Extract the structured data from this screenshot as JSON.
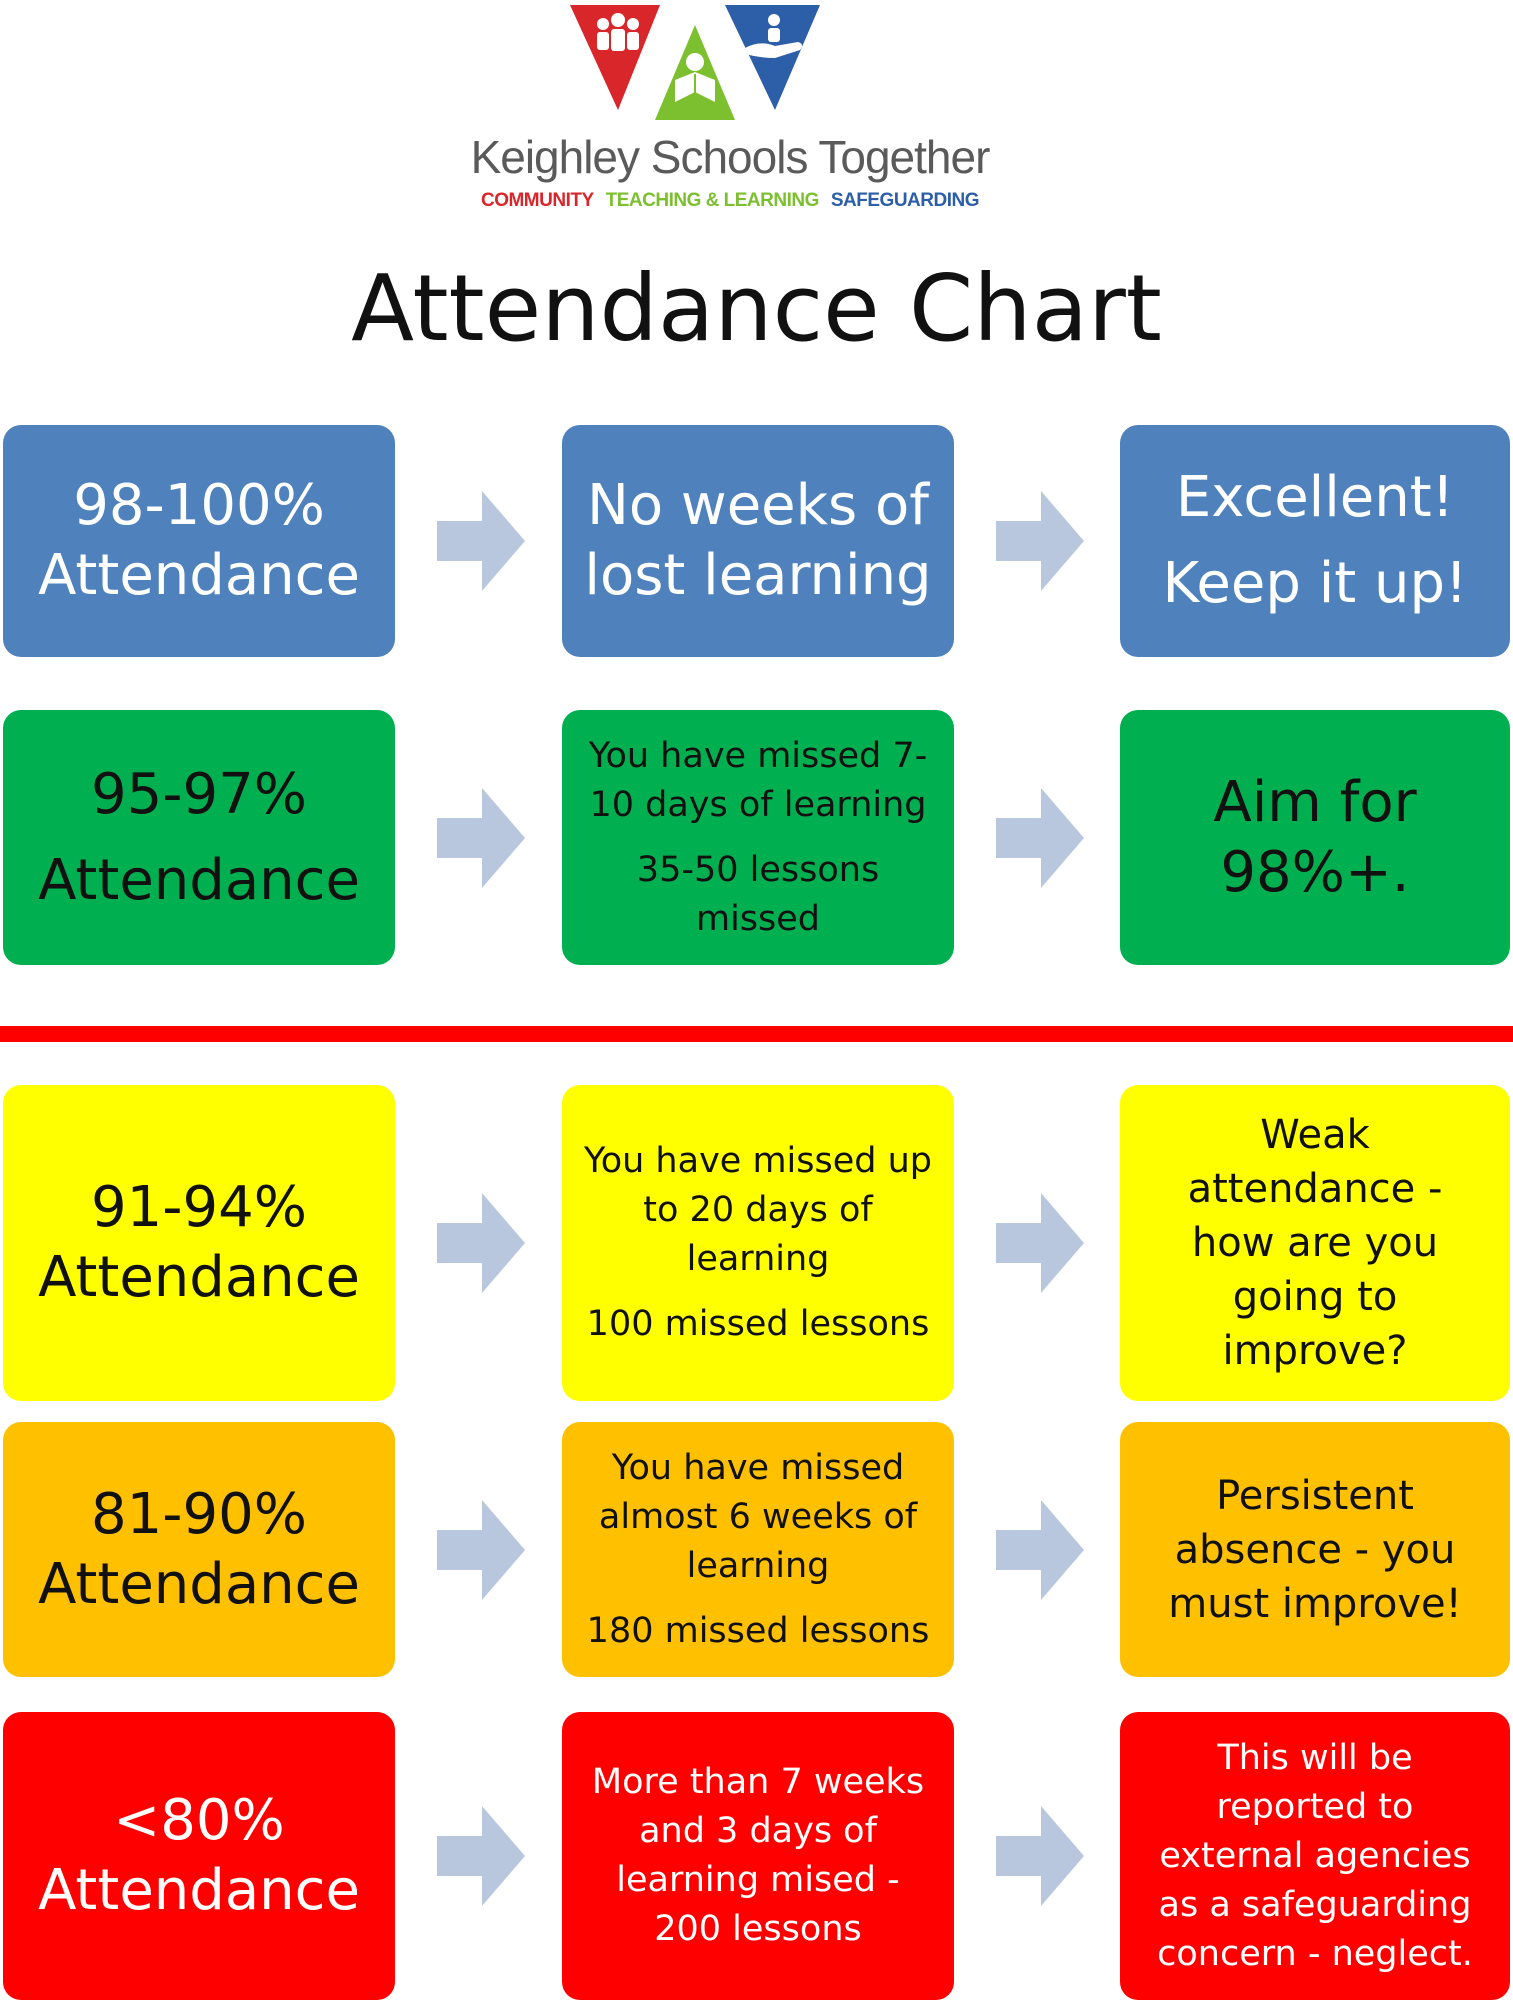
{
  "logo": {
    "title": "Keighley Schools Together",
    "tagline": [
      {
        "text": "COMMUNITY",
        "color": "#d9262b"
      },
      {
        "text": "TEACHING & LEARNING",
        "color": "#7cbf2f"
      },
      {
        "text": "SAFEGUARDING",
        "color": "#2d5ea8"
      }
    ],
    "icons": [
      "community-people-icon",
      "reading-child-icon",
      "hand-protect-icon"
    ]
  },
  "title": "Attendance Chart",
  "colors": {
    "blue": "#4f81bd",
    "green": "#00b050",
    "yellow": "#ffff00",
    "orange": "#ffc000",
    "red": "#ff0000",
    "arrow": "#b9c7de",
    "divider": "#ff0000"
  },
  "rows": [
    {
      "color": "blue",
      "level": [
        "98-100%",
        "Attendance"
      ],
      "impact": [
        "No weeks of",
        "lost learning"
      ],
      "advice": [
        "Excellent!",
        "Keep it up!"
      ]
    },
    {
      "color": "green",
      "level": [
        "95-97%",
        "Attendance"
      ],
      "impact": [
        "You have missed 7-",
        "10 days of learning",
        "35-50 lessons",
        "missed"
      ],
      "advice": [
        "Aim for",
        "98%+."
      ]
    },
    {
      "color": "yellow",
      "level": [
        "91-94%",
        "Attendance"
      ],
      "impact": [
        "You have missed up",
        "to 20 days of",
        "learning",
        "100 missed lessons"
      ],
      "advice": [
        "Weak",
        "attendance -",
        "how are you",
        "going to",
        "improve?"
      ]
    },
    {
      "color": "orange",
      "level": [
        "81-90%",
        "Attendance"
      ],
      "impact": [
        "You have missed",
        "almost 6 weeks of",
        "learning",
        "180 missed lessons"
      ],
      "advice": [
        "Persistent",
        "absence - you",
        "must improve!"
      ]
    },
    {
      "color": "red",
      "level": [
        "<80%",
        "Attendance"
      ],
      "impact": [
        "More than 7 weeks",
        "and 3 days of",
        "learning mised -",
        "200 lessons"
      ],
      "advice": [
        "This will be",
        "reported to",
        "external agencies",
        "as a safeguarding",
        "concern - neglect."
      ]
    }
  ]
}
